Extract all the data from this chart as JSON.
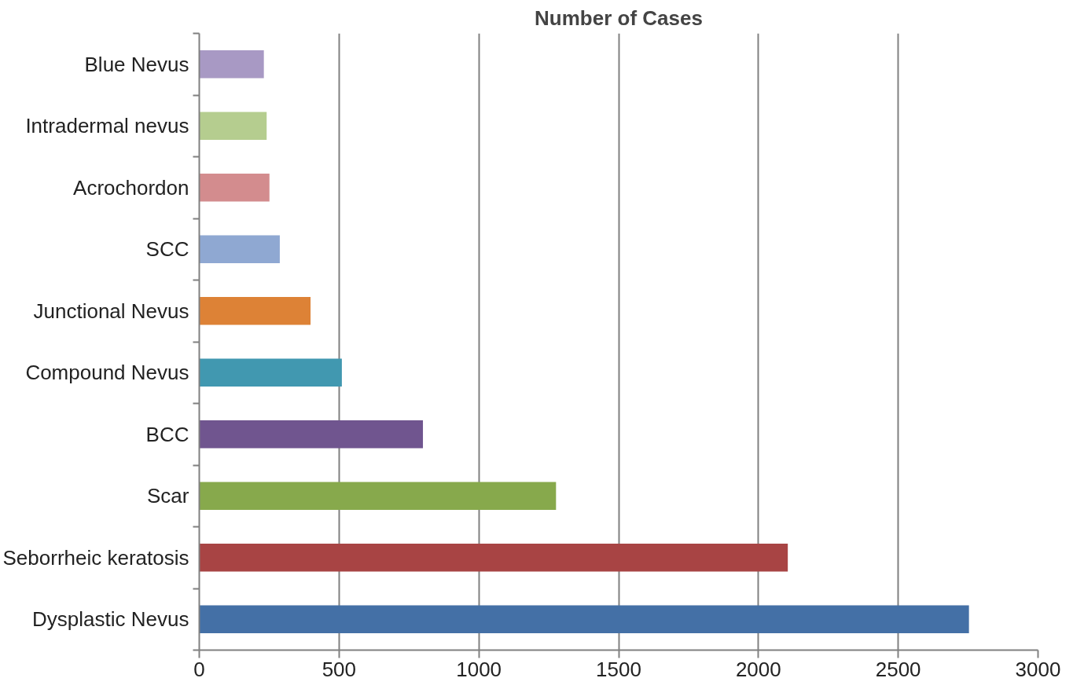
{
  "chart_data": {
    "type": "bar",
    "orientation": "horizontal",
    "title": "Number of Cases",
    "categories": [
      "Blue Nevus",
      "Intradermal nevus",
      "Acrochordon",
      "SCC",
      "Junctional Nevus",
      "Compound Nevus",
      "BCC",
      "Scar",
      "Seborrheic keratosis",
      "Dysplastic Nevus"
    ],
    "values": [
      231,
      241,
      251,
      288,
      398,
      510,
      800,
      1276,
      2105,
      2753
    ],
    "colors": [
      "#a899c4",
      "#b5cd8f",
      "#d38c8e",
      "#8fa8d2",
      "#dd8236",
      "#4198b0",
      "#70558f",
      "#87a94c",
      "#a84444",
      "#4470a6"
    ],
    "xlim": [
      0,
      3000
    ],
    "xticks": [
      0,
      500,
      1000,
      1500,
      2000,
      2500,
      3000
    ],
    "grid": "x"
  }
}
